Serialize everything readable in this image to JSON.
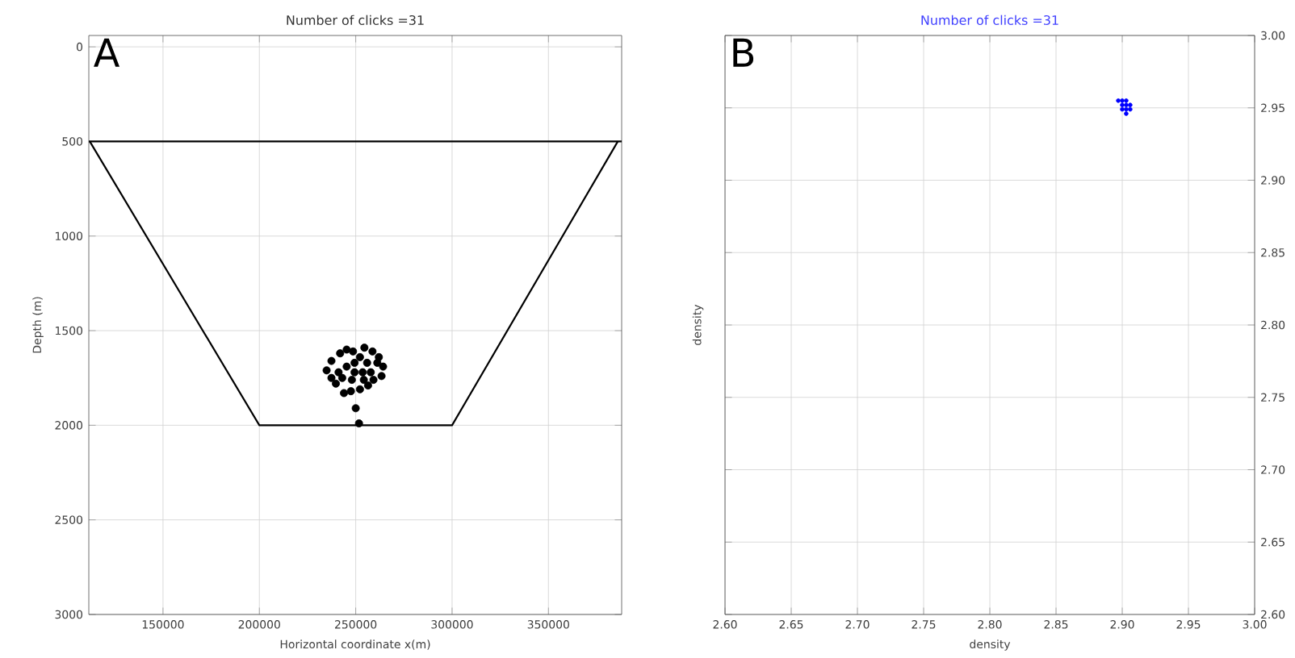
{
  "chart_data": [
    {
      "type": "scatter",
      "title": "Number of clicks =31",
      "xlabel": "Horizontal coordinate x(m)",
      "ylabel": "Depth (m)",
      "annotations": [
        "A"
      ],
      "xlim": [
        111500,
        388000
      ],
      "ylim": [
        3000,
        -60
      ],
      "xticks": [
        150000,
        200000,
        250000,
        300000,
        350000
      ],
      "yticks": [
        0,
        500,
        1000,
        1500,
        2000,
        2500,
        3000
      ],
      "grid": true,
      "ref_lines": [
        {
          "axis": "y",
          "value": 500,
          "color": "#000000"
        }
      ],
      "series": [
        {
          "type": "line",
          "color": "#000000",
          "marker": "none",
          "x": [
            112000,
            200000,
            300000,
            386000
          ],
          "values": [
            500,
            2000,
            2000,
            500
          ]
        },
        {
          "type": "scatter",
          "color": "#000000",
          "marker": "circle",
          "x": [
            234900,
            237400,
            241900,
            245300,
            248600,
            252200,
            254500,
            258700,
            262000,
            264200,
            263400,
            259200,
            256400,
            252200,
            247500,
            243900,
            239700,
            241100,
            245300,
            249400,
            253600,
            257800,
            261200,
            248000,
            254200,
            243000,
            237400,
            255900,
            249400,
            250000,
            251700
          ],
          "values": [
            1710,
            1660,
            1620,
            1600,
            1610,
            1640,
            1590,
            1610,
            1640,
            1690,
            1740,
            1760,
            1790,
            1810,
            1820,
            1830,
            1780,
            1720,
            1690,
            1720,
            1720,
            1720,
            1670,
            1760,
            1760,
            1750,
            1750,
            1670,
            1670,
            1910,
            1990
          ]
        }
      ]
    },
    {
      "type": "scatter",
      "title": "Number of clicks =31",
      "xlabel": "density",
      "ylabel": "density",
      "annotations": [
        "B"
      ],
      "xlim": [
        2.6,
        3.0
      ],
      "ylim": [
        2.6,
        3.0
      ],
      "xticks": [
        {
          "value": 2.6,
          "label": "2.60"
        },
        {
          "value": 2.65,
          "label": "2.65"
        },
        {
          "value": 2.7,
          "label": "2.70"
        },
        {
          "value": 2.75,
          "label": "2.75"
        },
        {
          "value": 2.8,
          "label": "2.80"
        },
        {
          "value": 2.85,
          "label": "2.85"
        },
        {
          "value": 2.9,
          "label": "2.90"
        },
        {
          "value": 2.95,
          "label": "2.95"
        },
        {
          "value": 3.0,
          "label": "3.00"
        }
      ],
      "yticks": [
        {
          "value": 2.6,
          "label": "2.60"
        },
        {
          "value": 2.65,
          "label": "2.65"
        },
        {
          "value": 2.7,
          "label": "2.70"
        },
        {
          "value": 2.75,
          "label": "2.75"
        },
        {
          "value": 2.8,
          "label": "2.80"
        },
        {
          "value": 2.85,
          "label": "2.85"
        },
        {
          "value": 2.9,
          "label": "2.90"
        },
        {
          "value": 2.95,
          "label": "2.95"
        },
        {
          "value": 3.0,
          "label": "3.00"
        }
      ],
      "grid": true,
      "series": [
        {
          "type": "scatter",
          "color": "#0000ff",
          "marker": "circle",
          "x": [
            2.897,
            2.9,
            2.903,
            2.9,
            2.903,
            2.906,
            2.9,
            2.903,
            2.906,
            2.903
          ],
          "values": [
            2.955,
            2.955,
            2.955,
            2.952,
            2.952,
            2.952,
            2.949,
            2.949,
            2.949,
            2.946
          ]
        }
      ]
    }
  ]
}
